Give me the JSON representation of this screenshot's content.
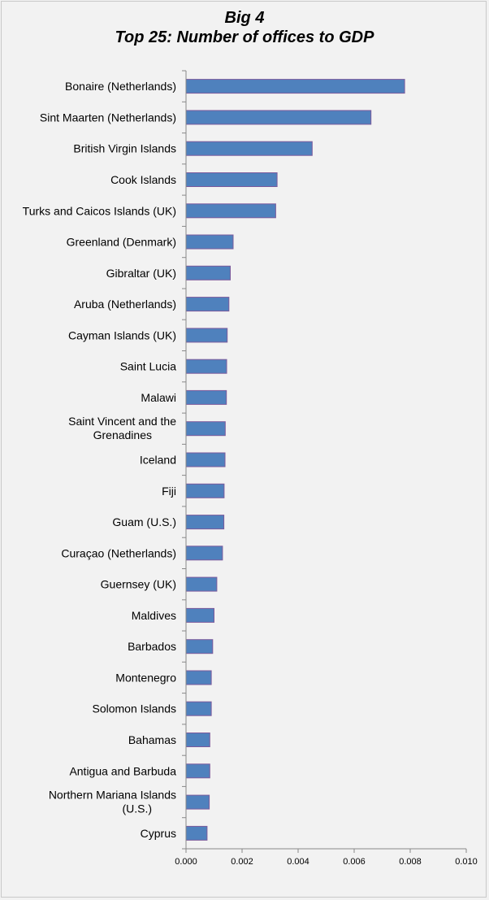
{
  "chart_data": {
    "type": "bar",
    "orientation": "horizontal",
    "title": "Big 4",
    "subtitle": "Top 25: Number of offices to GDP",
    "xlabel": "",
    "ylabel": "",
    "xlim": [
      0,
      0.01
    ],
    "x_ticks": [
      "0.000",
      "0.002",
      "0.004",
      "0.006",
      "0.008",
      "0.010"
    ],
    "grid": false,
    "legend": "none",
    "bar_color": "#4f81bd",
    "bar_edge_color": "#7b5a9c",
    "categories": [
      "Bonaire (Netherlands)",
      "Sint Maarten (Netherlands)",
      "British Virgin Islands",
      "Cook Islands",
      "Turks and Caicos Islands (UK)",
      "Greenland (Denmark)",
      "Gibraltar (UK)",
      "Aruba (Netherlands)",
      "Cayman Islands (UK)",
      "Saint Lucia",
      "Malawi",
      "Saint Vincent and the Grenadines",
      "Iceland",
      "Fiji",
      "Guam (U.S.)",
      "Curaçao (Netherlands)",
      "Guernsey (UK)",
      "Maldives",
      "Barbados",
      "Montenegro",
      "Solomon Islands",
      "Bahamas",
      "Antigua and Barbuda",
      "Northern Mariana Islands (U.S.)",
      "Cyprus"
    ],
    "values": [
      0.0078,
      0.0066,
      0.0045,
      0.00325,
      0.0032,
      0.00168,
      0.00158,
      0.00153,
      0.00147,
      0.00145,
      0.00144,
      0.0014,
      0.00139,
      0.00136,
      0.00135,
      0.0013,
      0.0011,
      0.001,
      0.00095,
      0.0009,
      0.0009,
      0.00085,
      0.00085,
      0.00083,
      0.00075
    ]
  }
}
